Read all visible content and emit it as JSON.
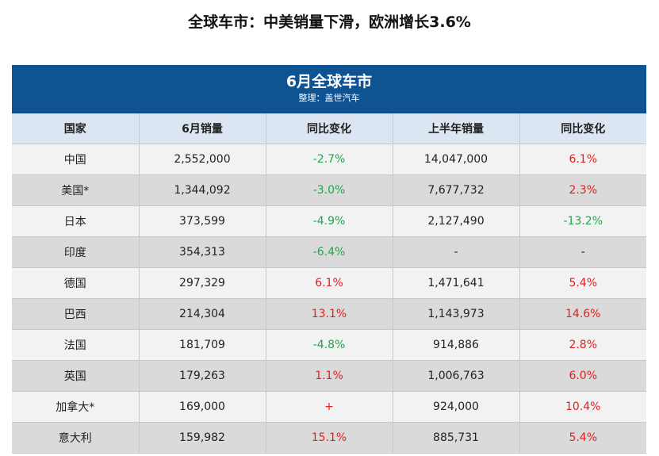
{
  "title": "全球车市：中美销量下滑，欧洲增长3.6%",
  "table": {
    "banner_title": "6月全球车市",
    "banner_subtitle": "整理：盖世汽车",
    "headers": [
      "国家",
      "6月销量",
      "同比变化",
      "上半年销量",
      "同比变化"
    ],
    "rows": [
      {
        "country": "中国",
        "june_sales": "2,552,000",
        "june_yoy": "-2.7%",
        "h1_sales": "14,047,000",
        "h1_yoy": "6.1%"
      },
      {
        "country": "美国*",
        "june_sales": "1,344,092",
        "june_yoy": "-3.0%",
        "h1_sales": "7,677,732",
        "h1_yoy": "2.3%"
      },
      {
        "country": "日本",
        "june_sales": "373,599",
        "june_yoy": "-4.9%",
        "h1_sales": "2,127,490",
        "h1_yoy": "-13.2%"
      },
      {
        "country": "印度",
        "june_sales": "354,313",
        "june_yoy": "-6.4%",
        "h1_sales": "-",
        "h1_yoy": "-"
      },
      {
        "country": "德国",
        "june_sales": "297,329",
        "june_yoy": "6.1%",
        "h1_sales": "1,471,641",
        "h1_yoy": "5.4%"
      },
      {
        "country": "巴西",
        "june_sales": "214,304",
        "june_yoy": "13.1%",
        "h1_sales": "1,143,973",
        "h1_yoy": "14.6%"
      },
      {
        "country": "法国",
        "june_sales": "181,709",
        "june_yoy": "-4.8%",
        "h1_sales": "914,886",
        "h1_yoy": "2.8%"
      },
      {
        "country": "英国",
        "june_sales": "179,263",
        "june_yoy": "1.1%",
        "h1_sales": "1,006,763",
        "h1_yoy": "6.0%"
      },
      {
        "country": "加拿大*",
        "june_sales": "169,000",
        "june_yoy": "+",
        "h1_sales": "924,000",
        "h1_yoy": "10.4%"
      },
      {
        "country": "意大利",
        "june_sales": "159,982",
        "june_yoy": "15.1%",
        "h1_sales": "885,731",
        "h1_yoy": "5.4%"
      }
    ]
  },
  "colors": {
    "banner": "#0e5493",
    "header_bg": "#dce6f2",
    "positive": "#e02020",
    "negative": "#22a54a"
  }
}
